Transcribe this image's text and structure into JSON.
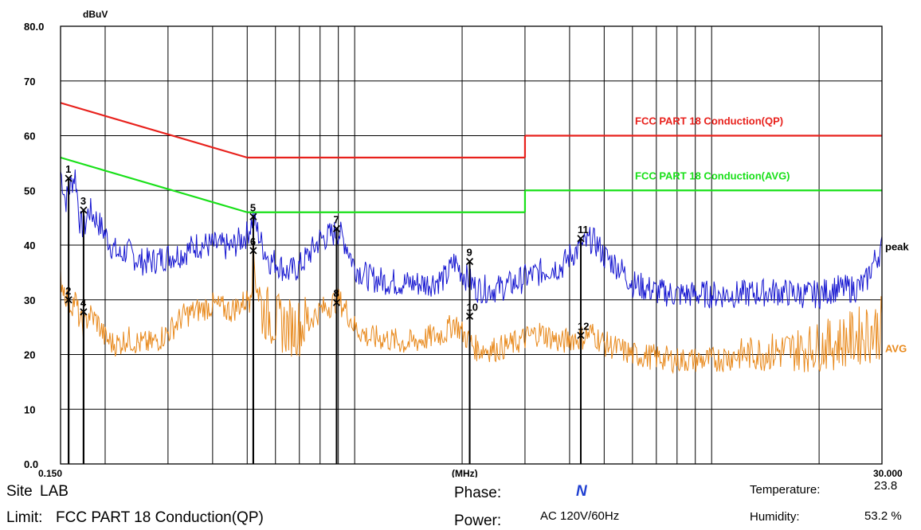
{
  "chart_data": {
    "type": "line",
    "y_unit": "dBuV",
    "x_unit": "(MHz)",
    "x_scale": "log",
    "xlim": [
      0.15,
      30.0
    ],
    "ylim": [
      0,
      80
    ],
    "x_tick_labels": [
      "0.150",
      "30.000"
    ],
    "y_tick_labels": [
      "0.0",
      "10",
      "20",
      "30",
      "40",
      "50",
      "60",
      "70",
      "80.0"
    ],
    "grid": true,
    "limits": [
      {
        "name": "FCC PART 18  Conduction(QP)",
        "color": "#e8211c",
        "segments": [
          [
            [
              0.15,
              66.0
            ],
            [
              0.5,
              56.0
            ]
          ],
          [
            [
              0.5,
              56.0
            ],
            [
              3.0,
              56.0
            ]
          ],
          [
            [
              3.0,
              60.0
            ],
            [
              30.0,
              60.0
            ]
          ]
        ]
      },
      {
        "name": "FCC PART 18 Conduction(AVG)",
        "color": "#19e019",
        "segments": [
          [
            [
              0.15,
              56.0
            ],
            [
              0.5,
              46.0
            ]
          ],
          [
            [
              0.5,
              46.0
            ],
            [
              3.0,
              46.0
            ]
          ],
          [
            [
              3.0,
              50.0
            ],
            [
              30.0,
              50.0
            ]
          ]
        ]
      }
    ],
    "series": [
      {
        "name": "peak",
        "color": "#1515d0",
        "x": [
          0.15,
          0.155,
          0.16,
          0.165,
          0.17,
          0.175,
          0.18,
          0.19,
          0.2,
          0.21,
          0.22,
          0.23,
          0.25,
          0.27,
          0.3,
          0.33,
          0.36,
          0.4,
          0.45,
          0.5,
          0.52,
          0.55,
          0.58,
          0.6,
          0.65,
          0.7,
          0.8,
          0.9,
          0.95,
          1.0,
          1.1,
          1.2,
          1.4,
          1.6,
          1.8,
          1.9,
          2.0,
          2.2,
          2.5,
          2.8,
          3.0,
          3.3,
          3.6,
          3.8,
          4.0,
          4.3,
          4.6,
          4.8,
          5.0,
          5.5,
          6.0,
          7.0,
          8.0,
          10.0,
          12.0,
          15.0,
          18.0,
          20.0,
          22.0,
          25.0,
          27.0,
          28.0,
          30.0
        ],
        "values": [
          53.5,
          48,
          51,
          53,
          44,
          43,
          46.5,
          44.5,
          42,
          39.5,
          38,
          39,
          37,
          37,
          38,
          38.5,
          40,
          40,
          39.5,
          42,
          45,
          40,
          37,
          37,
          35,
          36,
          41,
          42.5,
          40,
          36,
          34,
          33.5,
          33,
          33,
          34,
          37,
          35,
          32,
          32,
          33,
          34,
          35,
          36,
          36,
          38,
          39.5,
          41,
          40,
          38,
          36,
          33,
          31.5,
          31,
          31,
          31,
          31.5,
          31,
          31,
          32,
          32,
          33,
          36,
          39.5
        ]
      },
      {
        "name": "AVG",
        "color": "#e8891c",
        "x": [
          0.15,
          0.155,
          0.16,
          0.165,
          0.17,
          0.175,
          0.18,
          0.19,
          0.2,
          0.21,
          0.22,
          0.23,
          0.25,
          0.27,
          0.3,
          0.33,
          0.36,
          0.4,
          0.45,
          0.5,
          0.52,
          0.55,
          0.58,
          0.6,
          0.65,
          0.7,
          0.8,
          0.9,
          0.95,
          1.0,
          1.1,
          1.2,
          1.4,
          1.6,
          1.8,
          1.9,
          2.0,
          2.2,
          2.5,
          2.8,
          3.0,
          3.3,
          3.6,
          3.8,
          4.0,
          4.3,
          4.6,
          4.8,
          5.0,
          5.5,
          6.0,
          7.0,
          8.0,
          10.0,
          12.0,
          15.0,
          18.0,
          20.0,
          22.0,
          25.0,
          27.0,
          28.0,
          30.0
        ],
        "values": [
          34,
          31,
          29,
          30,
          26,
          25,
          27.5,
          26,
          23,
          22,
          22,
          23,
          22,
          22,
          24,
          27,
          28,
          29,
          28,
          30,
          38,
          28,
          27,
          26,
          25,
          25,
          28,
          30,
          28,
          25,
          23,
          23,
          22,
          23,
          24,
          26,
          24,
          21,
          21,
          22,
          23,
          24,
          23,
          22,
          23,
          23,
          24,
          23,
          22,
          21,
          20,
          19.5,
          19,
          19,
          20,
          20.5,
          21,
          21.5,
          22,
          23,
          24,
          24,
          25
        ]
      }
    ],
    "markers": [
      {
        "id": "1",
        "x": 0.158,
        "y": 52.2
      },
      {
        "id": "2",
        "x": 0.158,
        "y": 30.0
      },
      {
        "id": "3",
        "x": 0.174,
        "y": 46.4
      },
      {
        "id": "4",
        "x": 0.174,
        "y": 27.8
      },
      {
        "id": "5",
        "x": 0.52,
        "y": 45.2
      },
      {
        "id": "6",
        "x": 0.52,
        "y": 39.0
      },
      {
        "id": "7",
        "x": 0.89,
        "y": 43.0
      },
      {
        "id": "8",
        "x": 0.89,
        "y": 29.5
      },
      {
        "id": "9",
        "x": 2.1,
        "y": 37.0
      },
      {
        "id": "10",
        "x": 2.1,
        "y": 27.0
      },
      {
        "id": "11",
        "x": 4.3,
        "y": 41.2
      },
      {
        "id": "12",
        "x": 4.3,
        "y": 23.5
      }
    ],
    "trace_labels": [
      "peak",
      "AVG"
    ]
  },
  "info": {
    "site_label": "Site",
    "site_value": "LAB",
    "limit_label": "Limit:",
    "limit_value": "FCC PART 18  Conduction(QP)",
    "phase_label": "Phase:",
    "phase_value": "N",
    "power_label": "Power:",
    "power_value": "AC 120V/60Hz",
    "temperature_label": "Temperature:",
    "temperature_value": "23.8",
    "humidity_label": "Humidity:",
    "humidity_value": "53.2 %"
  }
}
